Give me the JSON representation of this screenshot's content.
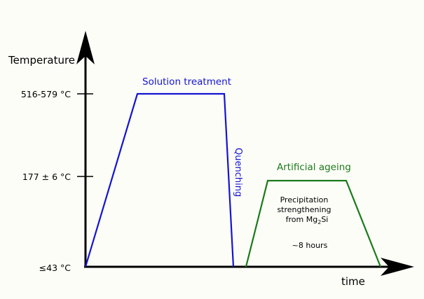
{
  "axes": {
    "y_label": "Temperature",
    "x_label": "time"
  },
  "ticks": {
    "high": "516-579 °C",
    "mid": "177 ± 6 °C",
    "low": "≤43 °C"
  },
  "stages": {
    "solution_treatment": "Solution treatment",
    "quenching": "Quenching",
    "artificial_ageing": "Artificial ageing"
  },
  "annotations": {
    "precipitation_line1": "Precipitation",
    "precipitation_line2": "strengthening",
    "precipitation_line3_prefix": "from Mg",
    "precipitation_line3_sub": "2",
    "precipitation_line3_suffix": "Si",
    "duration": "~8 hours"
  },
  "colors": {
    "background": "#fdfdf8",
    "axis": "#000000",
    "solution": "#1414d2",
    "ageing": "#1a7a1a"
  }
}
